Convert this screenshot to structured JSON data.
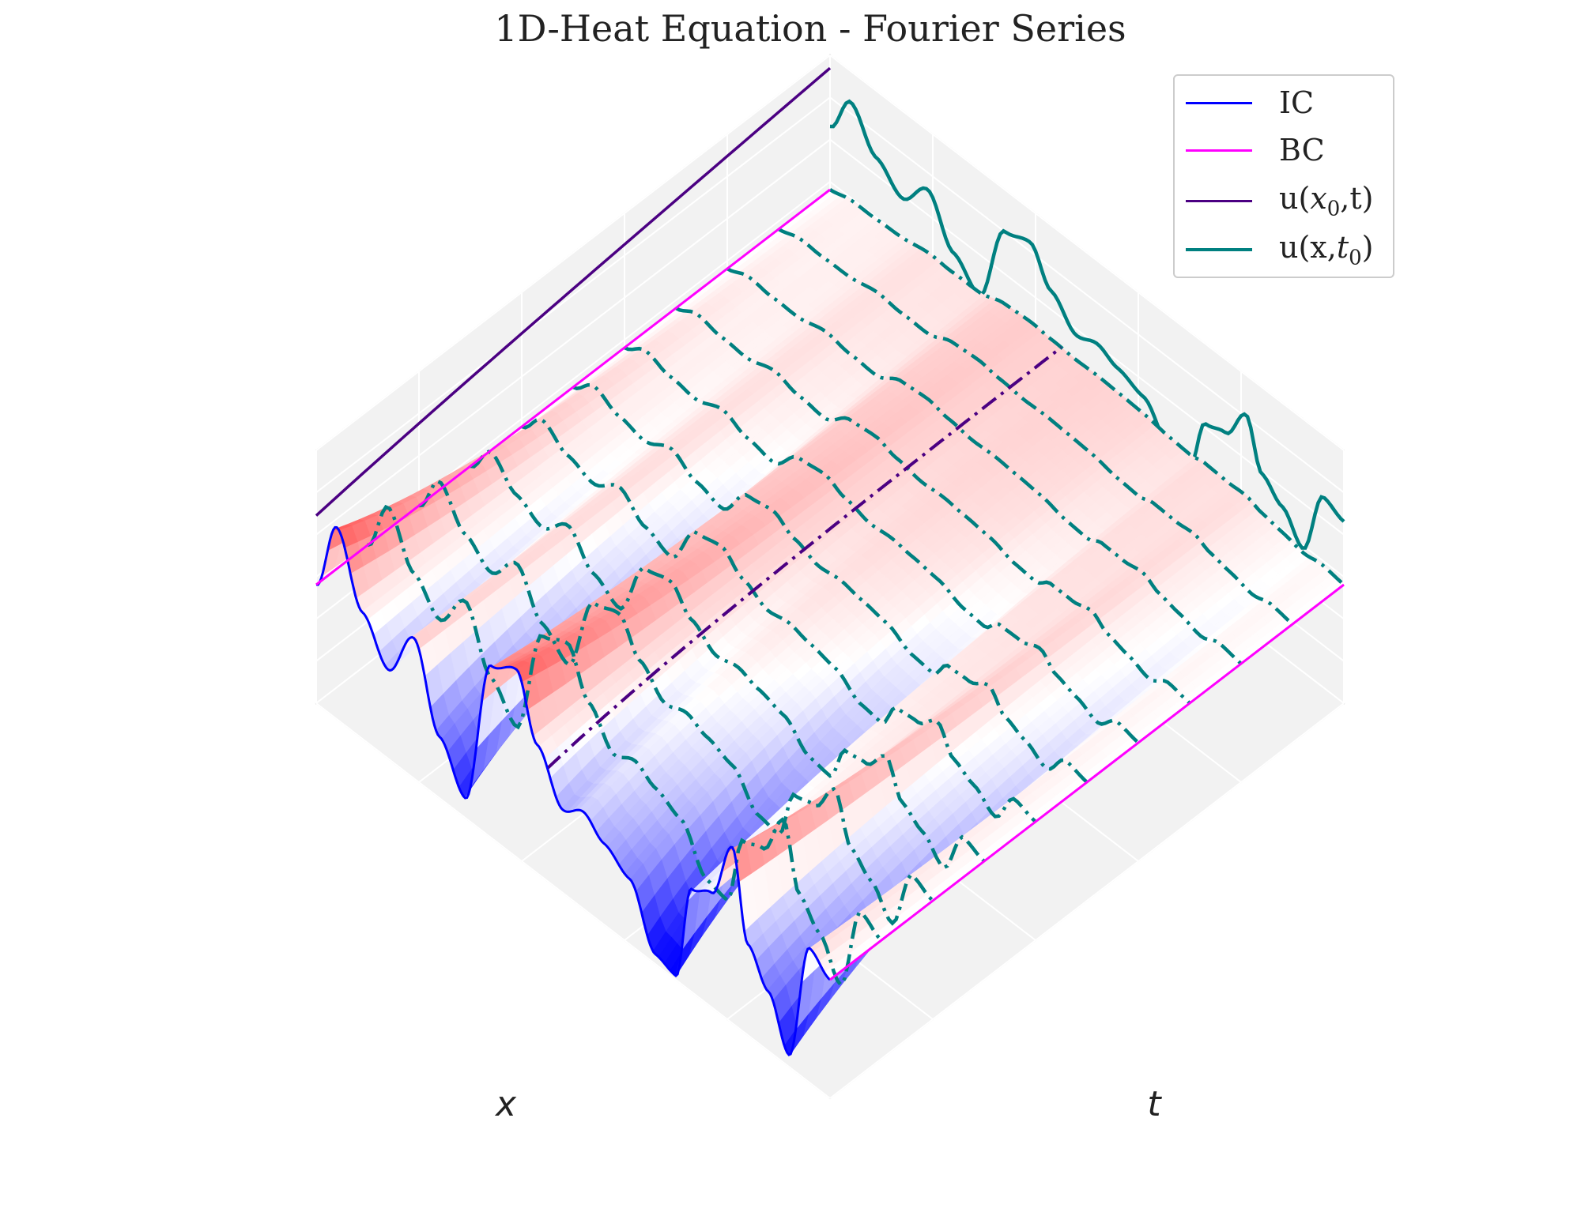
{
  "chart_data": {
    "type": "surface3d",
    "title": "1D-Heat Equation - Fourier Series",
    "xlabel": "x",
    "ylabel": "t",
    "zlabel": "",
    "view": {
      "elev": 45,
      "azim": -135
    },
    "grid": true,
    "colormap": "bwr",
    "legend_position": "top-right",
    "legend": [
      {
        "key": "IC",
        "label": "IC",
        "color": "#0000ff",
        "style": "solid",
        "width": 3
      },
      {
        "key": "BC",
        "label": "BC",
        "color": "#ff00ff",
        "style": "solid",
        "width": 3
      },
      {
        "key": "x0",
        "label_pre": "u(",
        "label_var": "x",
        "label_sub": "0",
        "label_post": ",t)",
        "color": "#4b0082",
        "style": "solid",
        "width": 3
      },
      {
        "key": "t0",
        "label_pre": "u(x,",
        "label_var": "t",
        "label_sub": "0",
        "label_post": ")",
        "color": "#008080",
        "style": "solid",
        "width": 4
      }
    ],
    "domain": {
      "x": [
        0,
        1
      ],
      "t": [
        0,
        1
      ]
    },
    "initial_condition": {
      "description": "u(x,0) sampled from the blue IC curve",
      "x": [
        0,
        0.04,
        0.09,
        0.14,
        0.19,
        0.24,
        0.29,
        0.34,
        0.39,
        0.43,
        0.48,
        0.52,
        0.56,
        0.61,
        0.66,
        0.7,
        0.73,
        0.77,
        0.81,
        0.84,
        0.88,
        0.92,
        0.96,
        1.0
      ],
      "u": [
        0,
        1.85,
        0.2,
        -0.75,
        0.55,
        -1.45,
        -2.5,
        1.35,
        1.75,
        0.25,
        -0.9,
        -0.55,
        -0.95,
        -1.35,
        -2.75,
        -2.9,
        -0.4,
        -0.1,
        1.45,
        -0.7,
        -1.5,
        -2.7,
        0.4,
        0
      ]
    },
    "surface_decay": 3.2,
    "cross_sections_t0": [
      0.0,
      0.1,
      0.2,
      0.3,
      0.4,
      0.5,
      0.6,
      0.7,
      0.8,
      0.9,
      1.0
    ],
    "cross_sections_x0": [
      0.0,
      0.45,
      1.0
    ],
    "projection_u_x_t0": {
      "t0": 0.0,
      "plane": "back-t"
    },
    "projection_u_x0_t": {
      "x0": 0.45,
      "plane": "back-x"
    }
  }
}
